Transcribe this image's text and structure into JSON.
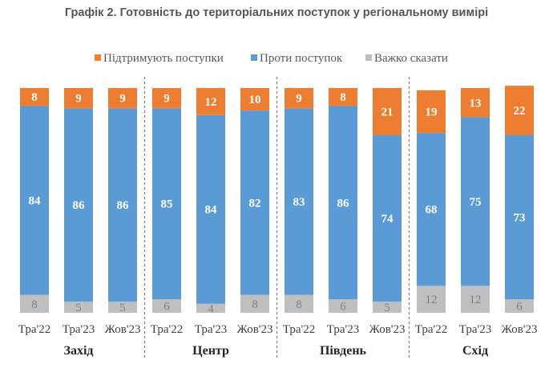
{
  "chart_data": {
    "type": "bar",
    "stacked": true,
    "title": "Графік 2. Готовність до територіальних поступок у регіональному вимірі",
    "legend_position": "top",
    "categories": [
      "Тра'22",
      "Тра'23",
      "Жов'23",
      "Тра'22",
      "Тра'23",
      "Жов'23",
      "Тра'22",
      "Тра'23",
      "Жов'23",
      "Тра'22",
      "Тра'23",
      "Жов'23"
    ],
    "groups": [
      {
        "label": "Захід",
        "count": 3
      },
      {
        "label": "Центр",
        "count": 3
      },
      {
        "label": "Південь",
        "count": 3
      },
      {
        "label": "Схід",
        "count": 3
      }
    ],
    "series": [
      {
        "name": "Важко сказати",
        "color": "#BFBFBF",
        "values": [
          8,
          5,
          5,
          6,
          4,
          8,
          8,
          6,
          5,
          12,
          12,
          6
        ]
      },
      {
        "name": "Проти поступок",
        "color": "#5B9BD5",
        "values": [
          84,
          86,
          86,
          85,
          84,
          82,
          83,
          86,
          74,
          68,
          75,
          73
        ]
      },
      {
        "name": "Підтримують поступки",
        "color": "#ED7D31",
        "values": [
          8,
          9,
          9,
          9,
          12,
          10,
          9,
          8,
          21,
          19,
          13,
          22
        ]
      }
    ],
    "legend_order": [
      "Підтримують поступки",
      "Проти поступок",
      "Важко сказати"
    ],
    "ylim": [
      0,
      100
    ]
  }
}
